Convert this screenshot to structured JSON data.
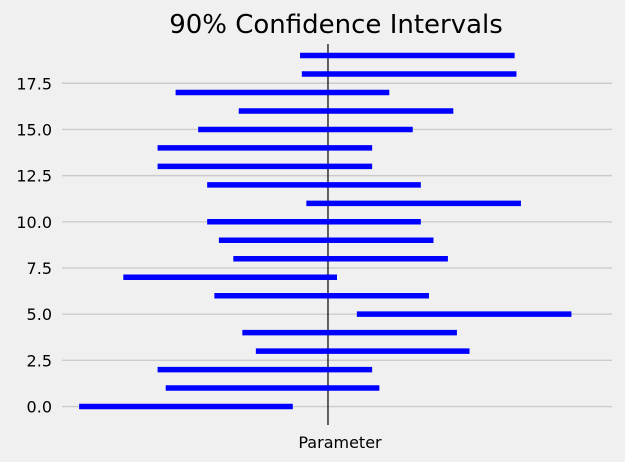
{
  "chart_data": {
    "type": "interval",
    "title": "90% Confidence Intervals",
    "xlabel": "Parameter",
    "ylabel": "",
    "ylim": [
      -1.0,
      19.95
    ],
    "yticks": [
      0.0,
      2.5,
      5.0,
      7.5,
      10.0,
      12.5,
      15.0,
      17.5
    ],
    "ytick_labels": [
      "0.0",
      "2.5",
      "5.0",
      "7.5",
      "10.0",
      "12.5",
      "15.0",
      "17.5"
    ],
    "xlim": [
      -2.95,
      3.15
    ],
    "reference_line_x": 0,
    "grid": "horizontal",
    "series": [
      {
        "color": "#0000ff",
        "intervals": [
          {
            "y": 0,
            "low": -2.76,
            "high": -0.39
          },
          {
            "y": 1,
            "low": -1.8,
            "high": 0.57
          },
          {
            "y": 2,
            "low": -1.89,
            "high": 0.49
          },
          {
            "y": 3,
            "low": -0.8,
            "high": 1.57
          },
          {
            "y": 4,
            "low": -0.95,
            "high": 1.43
          },
          {
            "y": 5,
            "low": 0.32,
            "high": 2.7
          },
          {
            "y": 6,
            "low": -1.26,
            "high": 1.12
          },
          {
            "y": 7,
            "low": -2.27,
            "high": 0.1
          },
          {
            "y": 8,
            "low": -1.05,
            "high": 1.33
          },
          {
            "y": 9,
            "low": -1.21,
            "high": 1.17
          },
          {
            "y": 10,
            "low": -1.34,
            "high": 1.03
          },
          {
            "y": 11,
            "low": -0.24,
            "high": 2.14
          },
          {
            "y": 12,
            "low": -1.34,
            "high": 1.03
          },
          {
            "y": 13,
            "low": -1.89,
            "high": 0.49
          },
          {
            "y": 14,
            "low": -1.89,
            "high": 0.49
          },
          {
            "y": 15,
            "low": -1.44,
            "high": 0.94
          },
          {
            "y": 16,
            "low": -0.99,
            "high": 1.39
          },
          {
            "y": 17,
            "low": -1.69,
            "high": 0.68
          },
          {
            "y": 18,
            "low": -0.29,
            "high": 2.09
          },
          {
            "y": 19,
            "low": -0.31,
            "high": 2.07
          }
        ]
      }
    ]
  }
}
